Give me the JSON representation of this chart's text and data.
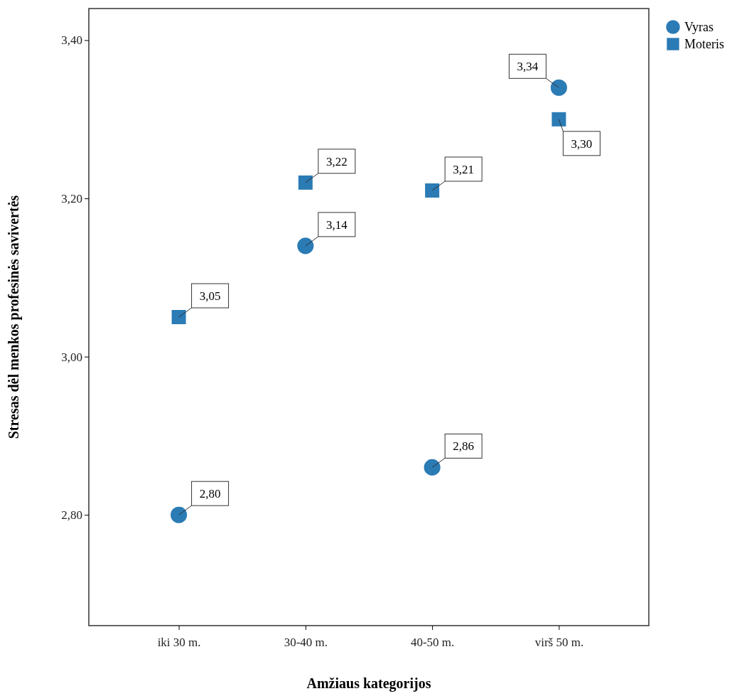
{
  "chart_data": {
    "type": "scatter",
    "xlabel": "Amžiaus kategorijos",
    "ylabel": "Stresas dėl menkos profesinės savivertės",
    "categories": [
      "iki 30 m.",
      "30-40 m.",
      "40-50 m.",
      "virš 50 m."
    ],
    "series": [
      {
        "name": "Vyras",
        "color": "#2b7bb5",
        "marker": "circle",
        "values": [
          2.8,
          3.14,
          2.86,
          3.34
        ],
        "value_labels": [
          "2,80",
          "3,14",
          "2,86",
          "3,34"
        ]
      },
      {
        "name": "Moteris",
        "color": "#2b7bb5",
        "marker": "square",
        "values": [
          3.05,
          3.22,
          3.21,
          3.3
        ],
        "value_labels": [
          "3,05",
          "3,22",
          "3,21",
          "3,30"
        ]
      }
    ],
    "ylim": [
      2.66,
      3.44
    ],
    "yticks": [
      {
        "value": 2.8,
        "label": "2,80"
      },
      {
        "value": 3.0,
        "label": "3,00"
      },
      {
        "value": 3.2,
        "label": "3,20"
      },
      {
        "value": 3.4,
        "label": "3,40"
      }
    ],
    "grid": false,
    "legend": "top right"
  }
}
